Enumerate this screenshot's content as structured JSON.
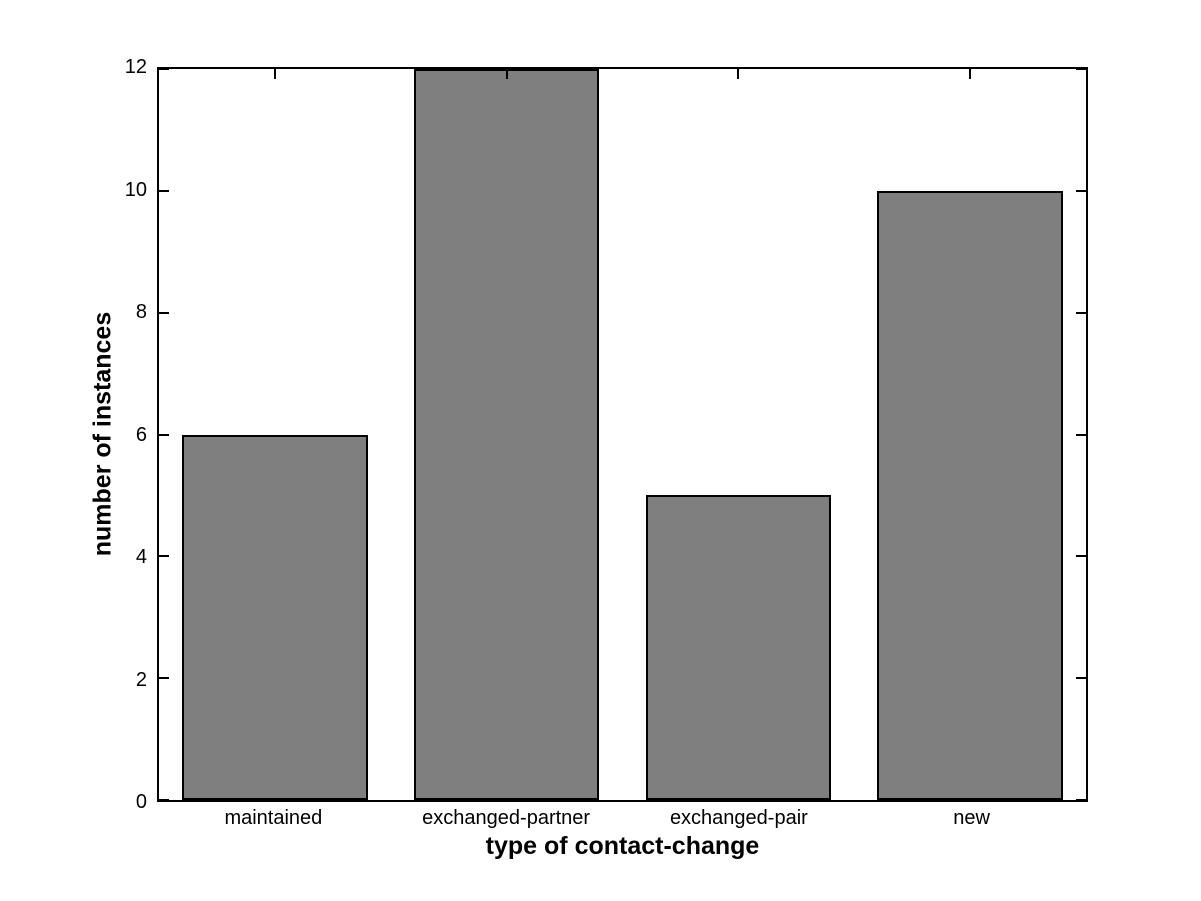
{
  "chart_data": {
    "type": "bar",
    "categories": [
      "maintained",
      "exchanged-partner",
      "exchanged-pair",
      "new"
    ],
    "values": [
      6,
      12,
      5,
      10
    ],
    "xlabel": "type of contact-change",
    "ylabel": "number of instances",
    "ylim": [
      0,
      12
    ],
    "yticks": [
      0,
      2,
      4,
      6,
      8,
      10,
      12
    ],
    "ytick_labels": [
      "0",
      "2",
      "4",
      "6",
      "8",
      "10",
      "12"
    ],
    "bar_width_fraction": 0.8,
    "bar_fill_color": "#7f7f7f",
    "bar_edge_color": "#000000",
    "axis_color": "#000000",
    "background_color": "#ffffff",
    "grid": false,
    "legend": "none"
  }
}
